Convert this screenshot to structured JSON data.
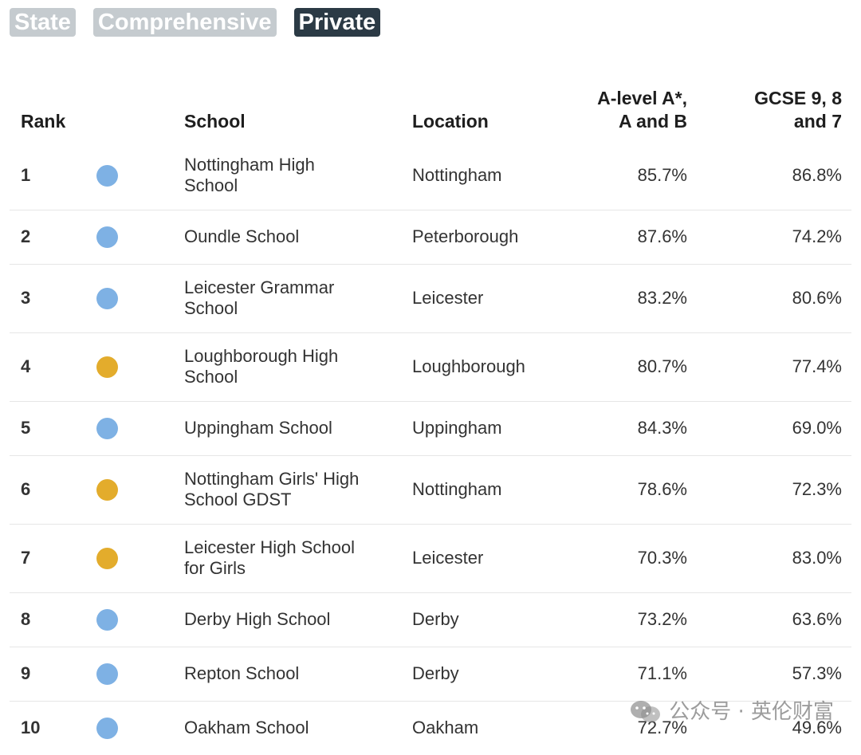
{
  "filters": [
    {
      "label": "State",
      "active": false
    },
    {
      "label": "Comprehensive",
      "active": false
    },
    {
      "label": "Private",
      "active": true
    }
  ],
  "columns": {
    "rank": "Rank",
    "school": "School",
    "location": "Location",
    "alevel_line1": "A-level A*,",
    "alevel_line2": "A and B",
    "gcse_line1": "GCSE 9, 8",
    "gcse_line2": "and 7"
  },
  "colors": {
    "private_dot": "#7eb1e4",
    "other_dot": "#e3ac2c",
    "active_chip": "#2b3a45",
    "inactive_chip": "#c5cbcf"
  },
  "rows": [
    {
      "rank": "1",
      "school_line1": "Nottingham High",
      "school_line2": "School",
      "location": "Nottingham",
      "alevel": "85.7%",
      "gcse": "86.8%",
      "dot": "#7eb1e4",
      "dot_icon": "blue-dot"
    },
    {
      "rank": "2",
      "school_line1": "Oundle School",
      "school_line2": "",
      "location": "Peterborough",
      "alevel": "87.6%",
      "gcse": "74.2%",
      "dot": "#7eb1e4",
      "dot_icon": "blue-dot"
    },
    {
      "rank": "3",
      "school_line1": "Leicester Grammar",
      "school_line2": "School",
      "location": "Leicester",
      "alevel": "83.2%",
      "gcse": "80.6%",
      "dot": "#7eb1e4",
      "dot_icon": "blue-dot"
    },
    {
      "rank": "4",
      "school_line1": "Loughborough High",
      "school_line2": "School",
      "location": "Loughborough",
      "alevel": "80.7%",
      "gcse": "77.4%",
      "dot": "#e3ac2c",
      "dot_icon": "yellow-dot"
    },
    {
      "rank": "5",
      "school_line1": "Uppingham School",
      "school_line2": "",
      "location": "Uppingham",
      "alevel": "84.3%",
      "gcse": "69.0%",
      "dot": "#7eb1e4",
      "dot_icon": "blue-dot"
    },
    {
      "rank": "6",
      "school_line1": "Nottingham Girls' High",
      "school_line2": "School GDST",
      "location": "Nottingham",
      "alevel": "78.6%",
      "gcse": "72.3%",
      "dot": "#e3ac2c",
      "dot_icon": "yellow-dot"
    },
    {
      "rank": "7",
      "school_line1": "Leicester High School",
      "school_line2": "for Girls",
      "location": "Leicester",
      "alevel": "70.3%",
      "gcse": "83.0%",
      "dot": "#e3ac2c",
      "dot_icon": "yellow-dot"
    },
    {
      "rank": "8",
      "school_line1": "Derby High School",
      "school_line2": "",
      "location": "Derby",
      "alevel": "73.2%",
      "gcse": "63.6%",
      "dot": "#7eb1e4",
      "dot_icon": "blue-dot"
    },
    {
      "rank": "9",
      "school_line1": "Repton School",
      "school_line2": "",
      "location": "Derby",
      "alevel": "71.1%",
      "gcse": "57.3%",
      "dot": "#7eb1e4",
      "dot_icon": "blue-dot"
    },
    {
      "rank": "10",
      "school_line1": "Oakham School",
      "school_line2": "",
      "location": "Oakham",
      "alevel": "72.7%",
      "gcse": "49.6%",
      "dot": "#7eb1e4",
      "dot_icon": "blue-dot"
    }
  ],
  "watermark": {
    "text": "公众号 · 英伦财富",
    "icon": "wechat-icon"
  }
}
